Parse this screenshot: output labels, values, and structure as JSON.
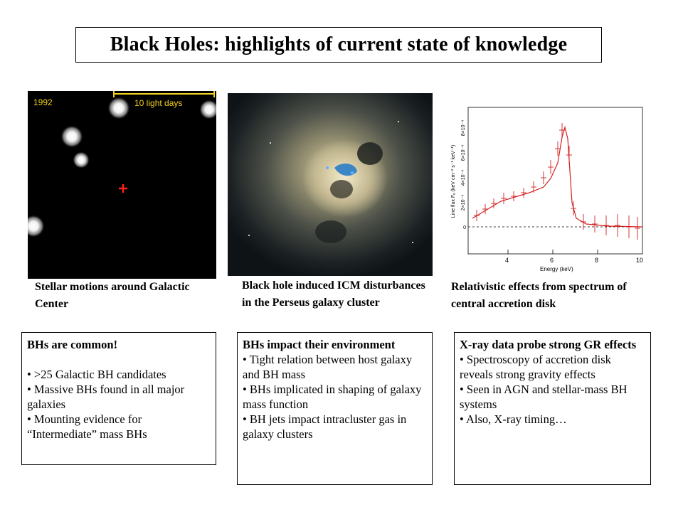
{
  "title": "Black Holes: highlights of current state of knowledge",
  "panels": {
    "gc": {
      "year": "1992",
      "scale_label": "10 light days",
      "caption": "Stellar motions around Galactic Center"
    },
    "perseus": {
      "caption": "Black hole induced ICM disturbances in the Perseus galaxy cluster"
    },
    "spectrum": {
      "caption": "Relativistic effects from spectrum of central accretion disk",
      "ylabel": "Line flux Fₑ (keV cm⁻² s⁻¹ keV⁻¹)",
      "xlabel": "Energy (keV)",
      "yticks": [
        "0",
        "2×10⁻⁴",
        "4×10⁻⁴",
        "6×10⁻⁴",
        "8×10⁻⁴"
      ],
      "xticks": [
        "4",
        "6",
        "8",
        "10"
      ]
    }
  },
  "boxes": {
    "common": {
      "title": "BHs are common!",
      "bullets": [
        "• >25 Galactic BH candidates",
        "• Massive BHs  found in all major galaxies",
        "• Mounting evidence for “Intermediate”  mass BHs"
      ]
    },
    "impact": {
      "title": "BHs impact their environment",
      "bullets": [
        "• Tight relation between host galaxy and BH mass",
        "• BHs implicated in shaping of galaxy mass function",
        "• BH jets impact intracluster gas in galaxy clusters"
      ]
    },
    "xray": {
      "title": "X-ray data probe strong GR effects",
      "bullets": [
        "• Spectroscopy of accretion disk reveals strong gravity effects",
        "• Seen in AGN and stellar-mass BH systems",
        "• Also, X-ray timing…"
      ]
    }
  }
}
